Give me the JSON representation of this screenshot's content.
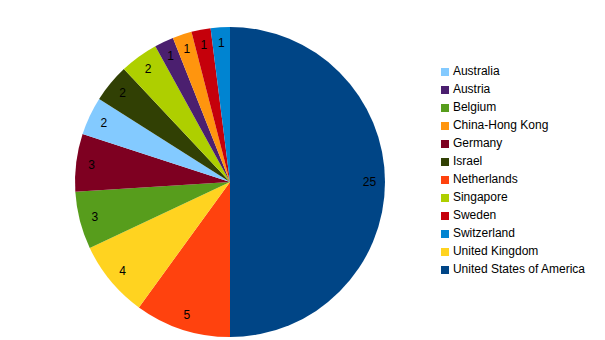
{
  "chart_data": {
    "type": "pie",
    "categories": [
      "United States of America",
      "Netherlands",
      "United Kingdom",
      "Belgium",
      "Germany",
      "Australia",
      "Israel",
      "Singapore",
      "Austria",
      "China-Hong Kong",
      "Sweden",
      "Switzerland"
    ],
    "values": [
      25,
      5,
      4,
      3,
      3,
      2,
      2,
      2,
      1,
      1,
      1,
      1
    ],
    "colors": [
      "#004586",
      "#ff420e",
      "#ffd320",
      "#579d1c",
      "#7e0021",
      "#83caff",
      "#314004",
      "#aecf00",
      "#4b1f6f",
      "#ff950e",
      "#c5000b",
      "#0084d1"
    ],
    "data_labels": true,
    "legend": "right"
  }
}
